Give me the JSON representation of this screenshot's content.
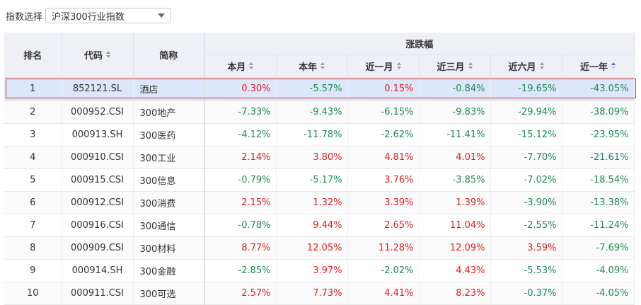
{
  "filter": {
    "label": "指数选择",
    "selected": "沪深300行业指数"
  },
  "colors": {
    "up": "#e02020",
    "down": "#1e8a52",
    "header_bg": "#eef0f6",
    "highlight_bg": "#dde7fb",
    "selection_border": "#e0302f",
    "sort_active": "#3a6ee8"
  },
  "table": {
    "headers": {
      "rank": "排名",
      "code": "代码",
      "name": "简称",
      "group": "涨跌幅",
      "this_month": "本月",
      "this_year": "本年",
      "one_month": "近一月",
      "three_months": "近三月",
      "six_months": "近六月",
      "one_year": "近一年"
    },
    "sorted_column": "one_year",
    "rows": [
      {
        "rank": "1",
        "code": "852121.SL",
        "name": "酒店",
        "this_month": "0.30%",
        "this_year": "-5.57%",
        "one_month": "0.15%",
        "three_months": "-0.84%",
        "six_months": "-19.65%",
        "one_year": "-43.05%"
      },
      {
        "rank": "2",
        "code": "000952.CSI",
        "name": "300地产",
        "this_month": "-7.33%",
        "this_year": "-9.43%",
        "one_month": "-6.15%",
        "three_months": "-9.83%",
        "six_months": "-29.94%",
        "one_year": "-38.09%"
      },
      {
        "rank": "3",
        "code": "000913.SH",
        "name": "300医药",
        "this_month": "-4.12%",
        "this_year": "-11.78%",
        "one_month": "-2.62%",
        "three_months": "-11.41%",
        "six_months": "-15.12%",
        "one_year": "-23.95%"
      },
      {
        "rank": "4",
        "code": "000910.CSI",
        "name": "300工业",
        "this_month": "2.14%",
        "this_year": "3.80%",
        "one_month": "4.81%",
        "three_months": "4.01%",
        "six_months": "-7.70%",
        "one_year": "-21.61%"
      },
      {
        "rank": "5",
        "code": "000915.CSI",
        "name": "300信息",
        "this_month": "-0.79%",
        "this_year": "-5.17%",
        "one_month": "3.76%",
        "three_months": "-3.85%",
        "six_months": "-7.02%",
        "one_year": "-18.54%"
      },
      {
        "rank": "6",
        "code": "000912.CSI",
        "name": "300消费",
        "this_month": "2.15%",
        "this_year": "1.32%",
        "one_month": "3.39%",
        "three_months": "1.39%",
        "six_months": "-3.90%",
        "one_year": "-13.38%"
      },
      {
        "rank": "7",
        "code": "000916.CSI",
        "name": "300通信",
        "this_month": "-0.78%",
        "this_year": "9.44%",
        "one_month": "2.65%",
        "three_months": "11.04%",
        "six_months": "-2.55%",
        "one_year": "-11.24%"
      },
      {
        "rank": "8",
        "code": "000909.CSI",
        "name": "300材料",
        "this_month": "8.77%",
        "this_year": "12.05%",
        "one_month": "11.28%",
        "three_months": "12.09%",
        "six_months": "3.59%",
        "one_year": "-7.69%"
      },
      {
        "rank": "9",
        "code": "000914.SH",
        "name": "300金融",
        "this_month": "-2.85%",
        "this_year": "3.97%",
        "one_month": "-2.02%",
        "three_months": "4.43%",
        "six_months": "-5.53%",
        "one_year": "-4.09%"
      },
      {
        "rank": "10",
        "code": "000911.CSI",
        "name": "300可选",
        "this_month": "2.57%",
        "this_year": "7.73%",
        "one_month": "4.41%",
        "three_months": "8.23%",
        "six_months": "-0.37%",
        "one_year": "-4.05%"
      }
    ]
  }
}
